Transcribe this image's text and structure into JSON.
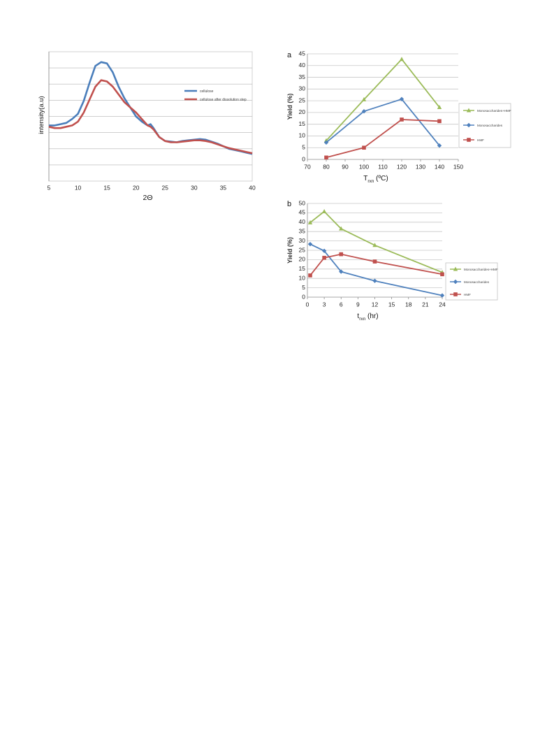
{
  "chart_data": [
    {
      "type": "line",
      "title": "",
      "xlabel": "2Θ",
      "ylabel": "intensity(a.u)",
      "xlim": [
        5,
        40
      ],
      "xticks": [
        5,
        10,
        15,
        20,
        25,
        30,
        35,
        40
      ],
      "grid": "horizontal",
      "legend_position": "right",
      "series": [
        {
          "name": "cellulose",
          "color": "#4a7ebb",
          "x": [
            5,
            6,
            7,
            8,
            9,
            10,
            11,
            12,
            13,
            14,
            15,
            16,
            17,
            18,
            19,
            20,
            21,
            22,
            22.5,
            23,
            24,
            25,
            26,
            27,
            28,
            29,
            30,
            31,
            32,
            33,
            34,
            35,
            36,
            37,
            38,
            39,
            40
          ],
          "y": [
            0.43,
            0.43,
            0.44,
            0.45,
            0.48,
            0.52,
            0.62,
            0.76,
            0.89,
            0.92,
            0.91,
            0.84,
            0.73,
            0.64,
            0.57,
            0.5,
            0.46,
            0.43,
            0.44,
            0.41,
            0.34,
            0.31,
            0.305,
            0.3,
            0.31,
            0.315,
            0.32,
            0.325,
            0.32,
            0.305,
            0.29,
            0.27,
            0.25,
            0.24,
            0.23,
            0.22,
            0.21
          ]
        },
        {
          "name": "cellulose after dissolution step",
          "color": "#c0504d",
          "x": [
            5,
            6,
            7,
            8,
            9,
            10,
            11,
            12,
            13,
            14,
            15,
            16,
            17,
            18,
            19,
            20,
            21,
            22,
            22.5,
            23,
            24,
            25,
            26,
            27,
            28,
            29,
            30,
            31,
            32,
            33,
            34,
            35,
            36,
            37,
            38,
            39,
            40
          ],
          "y": [
            0.42,
            0.41,
            0.41,
            0.42,
            0.43,
            0.46,
            0.53,
            0.63,
            0.73,
            0.78,
            0.77,
            0.73,
            0.67,
            0.61,
            0.57,
            0.53,
            0.48,
            0.43,
            0.42,
            0.4,
            0.34,
            0.31,
            0.3,
            0.3,
            0.305,
            0.31,
            0.315,
            0.315,
            0.31,
            0.3,
            0.285,
            0.27,
            0.255,
            0.245,
            0.235,
            0.225,
            0.215
          ]
        }
      ]
    },
    {
      "type": "line",
      "panel_label": "a",
      "title": "",
      "xlabel_main": "T",
      "xlabel_sub": "rxn",
      "xlabel_unit": " (ºC)",
      "ylabel": "Yield (%)",
      "xlim": [
        70,
        150
      ],
      "ylim": [
        0,
        45
      ],
      "xticks": [
        70,
        80,
        90,
        100,
        110,
        120,
        130,
        140,
        150
      ],
      "yticks": [
        0,
        5,
        10,
        15,
        20,
        25,
        30,
        35,
        40,
        45
      ],
      "grid": "horizontal",
      "legend_position": "right",
      "series": [
        {
          "name": "Monosaccharides+HMF",
          "color": "#9bbb59",
          "marker": "triangle",
          "x": [
            80,
            100,
            120,
            140
          ],
          "y": [
            8,
            25.5,
            42.7,
            22.2
          ]
        },
        {
          "name": "Monosaccharides",
          "color": "#4f81bd",
          "marker": "diamond",
          "x": [
            80,
            100,
            120,
            140
          ],
          "y": [
            7.2,
            20.5,
            25.7,
            5.9
          ]
        },
        {
          "name": "HMF",
          "color": "#c0504d",
          "marker": "square",
          "x": [
            80,
            100,
            120,
            140
          ],
          "y": [
            0.8,
            5,
            17,
            16.3
          ]
        }
      ]
    },
    {
      "type": "line",
      "panel_label": "b",
      "title": "",
      "xlabel_main": "t",
      "xlabel_sub": "rxn",
      "xlabel_unit": " (hr)",
      "ylabel": "Yield (%)",
      "xlim": [
        0,
        24
      ],
      "ylim": [
        0,
        50
      ],
      "xticks": [
        0,
        3,
        6,
        9,
        12,
        15,
        18,
        21,
        24
      ],
      "yticks": [
        0,
        5,
        10,
        15,
        20,
        25,
        30,
        35,
        40,
        45,
        50
      ],
      "grid": "horizontal",
      "legend_position": "right",
      "series": [
        {
          "name": "Monosaccharides+HMF",
          "color": "#9bbb59",
          "marker": "triangle",
          "x": [
            0.5,
            3,
            6,
            12,
            24
          ],
          "y": [
            39.8,
            45.7,
            36.5,
            27.7,
            13.2
          ]
        },
        {
          "name": "Monosaccharides",
          "color": "#4f81bd",
          "marker": "diamond",
          "x": [
            0.5,
            3,
            6,
            12,
            24
          ],
          "y": [
            28.3,
            24.7,
            13.6,
            8.7,
            0.9
          ]
        },
        {
          "name": "HMF",
          "color": "#c0504d",
          "marker": "square",
          "x": [
            0.5,
            3,
            6,
            12,
            24
          ],
          "y": [
            11.6,
            21,
            22.9,
            19,
            12.2
          ]
        }
      ]
    }
  ]
}
